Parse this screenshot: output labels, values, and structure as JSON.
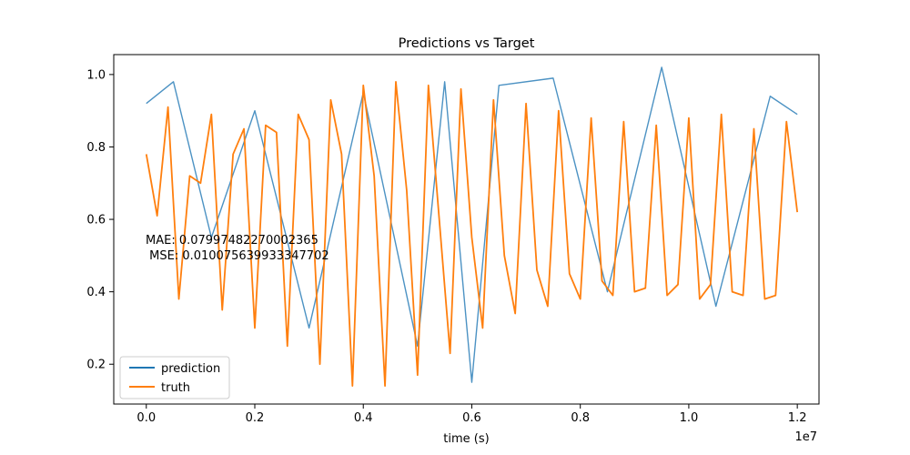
{
  "chart_data": {
    "type": "line",
    "title": "Predictions vs Target",
    "xlabel": "time (s)",
    "ylabel": "",
    "x_offset_label": "1e7",
    "xlim": [
      -0.06,
      1.24
    ],
    "ylim": [
      0.09,
      1.055
    ],
    "x_ticks": [
      0.0,
      0.2,
      0.4,
      0.6,
      0.8,
      1.0,
      1.2
    ],
    "x_tick_labels": [
      "0.0",
      "0.2",
      "0.4",
      "0.6",
      "0.8",
      "1.0",
      "1.2"
    ],
    "y_ticks": [
      0.2,
      0.4,
      0.6,
      0.8,
      1.0
    ],
    "y_tick_labels": [
      "0.2",
      "0.4",
      "0.6",
      "0.8",
      "1.0"
    ],
    "grid": false,
    "legend_position": "lower-left",
    "annotation_lines": [
      "MAE: 0.07997482270002365",
      " MSE: 0.010075639933347702"
    ],
    "series": [
      {
        "name": "prediction",
        "color": "#1f77b4",
        "alpha": 0.8,
        "x": [
          0.0,
          0.05,
          0.12,
          0.2,
          0.3,
          0.4,
          0.5,
          0.55,
          0.6,
          0.65,
          0.75,
          0.85,
          0.95,
          1.05,
          1.15,
          1.2
        ],
        "y": [
          0.92,
          0.98,
          0.55,
          0.9,
          0.3,
          0.95,
          0.25,
          0.98,
          0.15,
          0.97,
          0.99,
          0.4,
          1.02,
          0.36,
          0.94,
          0.89
        ]
      },
      {
        "name": "truth",
        "color": "#ff7f0e",
        "x": [
          0.0,
          0.02,
          0.04,
          0.06,
          0.08,
          0.1,
          0.12,
          0.14,
          0.16,
          0.18,
          0.2,
          0.22,
          0.24,
          0.26,
          0.28,
          0.3,
          0.32,
          0.34,
          0.36,
          0.38,
          0.4,
          0.42,
          0.44,
          0.46,
          0.48,
          0.5,
          0.52,
          0.54,
          0.56,
          0.58,
          0.6,
          0.62,
          0.64,
          0.66,
          0.68,
          0.7,
          0.72,
          0.74,
          0.76,
          0.78,
          0.8,
          0.82,
          0.84,
          0.86,
          0.88,
          0.9,
          0.92,
          0.94,
          0.96,
          0.98,
          1.0,
          1.02,
          1.04,
          1.06,
          1.08,
          1.1,
          1.12,
          1.14,
          1.16,
          1.18,
          1.2
        ],
        "y": [
          0.78,
          0.61,
          0.91,
          0.38,
          0.72,
          0.7,
          0.89,
          0.35,
          0.78,
          0.85,
          0.3,
          0.86,
          0.84,
          0.25,
          0.89,
          0.82,
          0.2,
          0.93,
          0.78,
          0.14,
          0.97,
          0.72,
          0.14,
          0.98,
          0.68,
          0.17,
          0.97,
          0.6,
          0.23,
          0.96,
          0.55,
          0.3,
          0.93,
          0.5,
          0.34,
          0.92,
          0.46,
          0.36,
          0.9,
          0.45,
          0.38,
          0.88,
          0.43,
          0.39,
          0.87,
          0.4,
          0.41,
          0.86,
          0.39,
          0.42,
          0.88,
          0.38,
          0.42,
          0.89,
          0.4,
          0.39,
          0.85,
          0.38,
          0.39,
          0.87,
          0.62
        ]
      }
    ]
  }
}
